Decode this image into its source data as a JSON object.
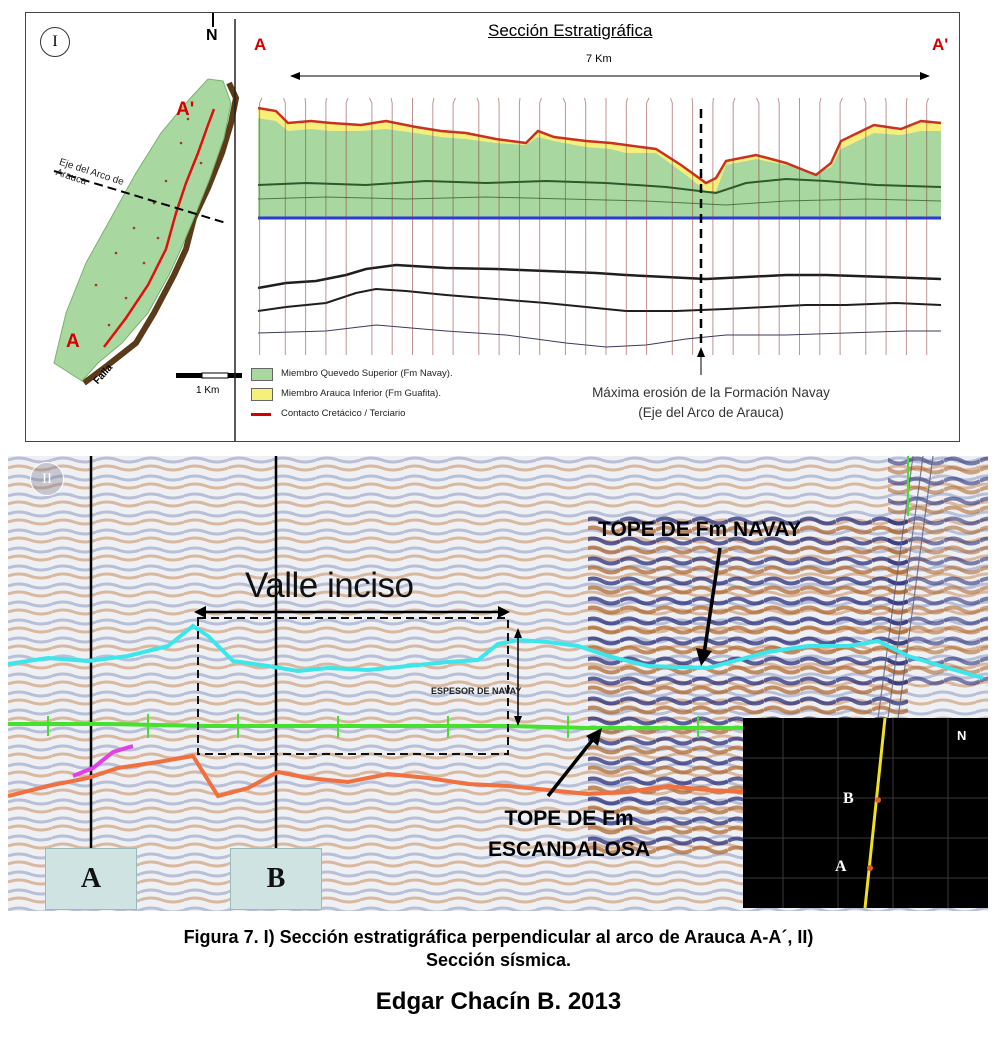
{
  "panel1": {
    "roman": "I",
    "north": "N",
    "map": {
      "label_a": "A",
      "label_a_prime": "A'",
      "axis_label": "Eje del Arco de Arauca",
      "fault_label": "Falla",
      "scale_label": "1 Km"
    },
    "section": {
      "title": "Sección Estratigráfica",
      "label_a": "A",
      "label_a_prime": "A'",
      "distance": "7 Km"
    },
    "legend": [
      {
        "label": "Miembro Quevedo Superior (Fm Navay).",
        "color": "#a8d8a0",
        "kind": "swatch"
      },
      {
        "label": "Miembro Arauca Inferior (Fm Guafita).",
        "color": "#f6f07a",
        "kind": "swatch"
      },
      {
        "label": "Contacto Cretácico / Terciario",
        "color": "#d40000",
        "kind": "line"
      }
    ],
    "erosion_note_line1": "Máxima erosión de la Formación Navay",
    "erosion_note_line2": "(Eje del Arco de Arauca)"
  },
  "panel2": {
    "roman": "II",
    "valle_label": "Valle inciso",
    "espesor_label": "ESPESOR DE NAVAY",
    "tope_navay": "TOPE DE Fm NAVAY",
    "tope_esc_line1": "TOPE DE Fm",
    "tope_esc_line2": "ESCANDALOSA",
    "well_a": "A",
    "well_b": "B",
    "inset": {
      "north": "N",
      "label_b": "B",
      "label_a": "A"
    }
  },
  "caption_line1": "Figura 7. I) Sección estratigráfica perpendicular al arco de Arauca A-A´, II)",
  "caption_line2": "Sección sísmica.",
  "author": "Edgar Chacín B. 2013",
  "colors": {
    "navay_green": "#a8d8a0",
    "guafita_yellow": "#f6f07a",
    "contact_red": "#d40000",
    "datum_blue": "#2a3ad8",
    "horizon_cyan": "#3ce6ea",
    "horizon_green": "#46e02e",
    "horizon_orange": "#f07040"
  }
}
